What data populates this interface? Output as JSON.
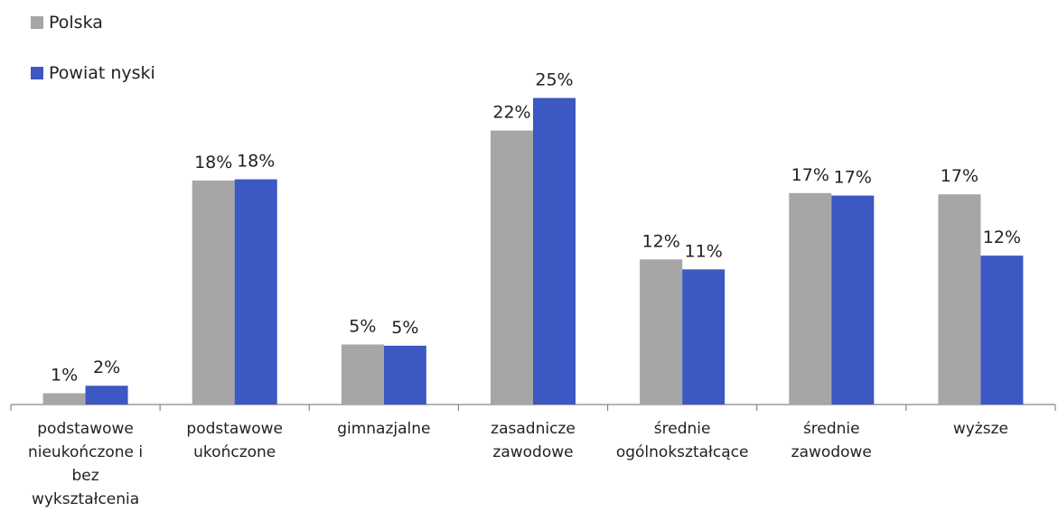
{
  "chart_data": {
    "type": "bar",
    "categories": [
      [
        "podstawowe",
        "nieukończone i",
        "bez",
        "wykształcenia"
      ],
      [
        "podstawowe",
        "ukończone"
      ],
      [
        "gimnazjalne"
      ],
      [
        "zasadnicze",
        "zawodowe"
      ],
      [
        "średnie",
        "ogólnokształcące"
      ],
      [
        "średnie",
        "zawodowe"
      ],
      [
        "wyższe"
      ]
    ],
    "series": [
      {
        "name": "Polska",
        "color": "#a6a6a6",
        "values": [
          0.9,
          17.9,
          4.8,
          21.9,
          11.6,
          16.9,
          16.8
        ],
        "labels": [
          "1%",
          "18%",
          "5%",
          "22%",
          "12%",
          "17%",
          "17%"
        ]
      },
      {
        "name": "Powiat nyski",
        "color": "#3c58c3",
        "values": [
          1.5,
          18.0,
          4.7,
          24.5,
          10.8,
          16.7,
          11.9
        ],
        "labels": [
          "2%",
          "18%",
          "5%",
          "25%",
          "11%",
          "17%",
          "12%"
        ]
      }
    ],
    "ylim": [
      0,
      28
    ],
    "legend": "top-left",
    "grid": false
  }
}
